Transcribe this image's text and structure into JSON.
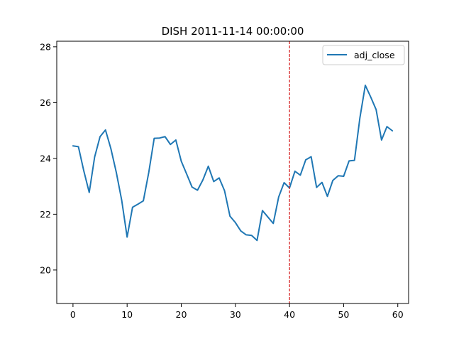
{
  "chart_data": {
    "type": "line",
    "title": "DISH 2011-11-14 00:00:00",
    "xlabel": "",
    "ylabel": "",
    "xlim": [
      -3,
      62
    ],
    "ylim": [
      18.8,
      28.2
    ],
    "x_ticks": [
      0,
      10,
      20,
      30,
      40,
      50,
      60
    ],
    "y_ticks": [
      20,
      22,
      24,
      26,
      28
    ],
    "grid": false,
    "legend_position": "top-right",
    "vline": {
      "x": 40,
      "color": "#d62728",
      "style": "dashed"
    },
    "series": [
      {
        "name": "adj_close",
        "color": "#1f77b4",
        "x": [
          0,
          1,
          2,
          3,
          4,
          5,
          6,
          7,
          8,
          9,
          10,
          11,
          12,
          13,
          14,
          15,
          16,
          17,
          18,
          19,
          20,
          21,
          22,
          23,
          24,
          25,
          26,
          27,
          28,
          29,
          30,
          31,
          32,
          33,
          34,
          35,
          36,
          37,
          38,
          39,
          40,
          41,
          42,
          43,
          44,
          45,
          46,
          47,
          48,
          49,
          50,
          51,
          52,
          53,
          54,
          55,
          56,
          57,
          58,
          59
        ],
        "values": [
          24.45,
          24.42,
          23.55,
          22.78,
          24.05,
          24.78,
          25.02,
          24.35,
          23.5,
          22.5,
          21.18,
          22.25,
          22.36,
          22.48,
          23.5,
          24.72,
          24.73,
          24.78,
          24.5,
          24.66,
          23.9,
          23.44,
          22.97,
          22.86,
          23.23,
          23.72,
          23.17,
          23.3,
          22.84,
          21.93,
          21.7,
          21.4,
          21.26,
          21.24,
          21.06,
          22.13,
          21.9,
          21.67,
          22.62,
          23.13,
          22.94,
          23.54,
          23.4,
          23.95,
          24.06,
          22.96,
          23.14,
          22.64,
          23.21,
          23.38,
          23.36,
          23.91,
          23.93,
          25.45,
          26.62,
          26.2,
          25.75,
          24.66,
          25.14,
          24.99
        ]
      }
    ]
  }
}
